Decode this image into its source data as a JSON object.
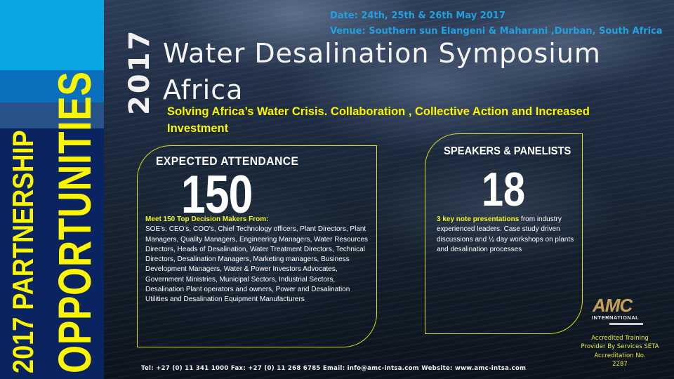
{
  "banner": {
    "line1": "2017 PARTNERSHIP",
    "line2": "OPPORTUNITIES",
    "colors": {
      "text": "#fbf600",
      "band_light": "#0aa6e6",
      "band_mid": "#0a6fbd",
      "band_gray": "#27528a",
      "band_dark": "#0a2461"
    }
  },
  "event": {
    "date": "Date: 24th, 25th & 26th May 2017",
    "venue": "Venue: Southern sun Elangeni & Maharani ,Durban, South Africa"
  },
  "header": {
    "year": "2017",
    "title_line1": "Water Desalination Symposium",
    "title_line2": "Africa",
    "subtitle": "Solving Africa’s Water Crisis. Collaboration , Collective Action and Increased Investment"
  },
  "attendance": {
    "heading": "EXPECTED ATTENDANCE",
    "number": "150",
    "lead": "Meet 150 Top Decision Makers From:",
    "body": "SOE’s, CEO’s, COO’s, Chief Technology officers, Plant Directors, Plant Managers, Quality Managers, Engineering Managers, Water Resources Directors, Heads of Desalination, Water Treatment Directors, Technical Directors, Desalination Managers, Marketing managers, Business Development Managers, Water & Power Investors Advocates, Government Ministries, Municipal Sectors, Industrial Sectors, Desalination Plant operators and owners, Power and Desalination Utilities and Desalination Equipment Manufacturers"
  },
  "speakers": {
    "heading": "SPEAKERS & PANELISTS",
    "number": "18",
    "lead": "3 key note presentations",
    "body": " from industry experienced leaders. Case study driven discussions and ½ day workshops on plants and desalination processes"
  },
  "logo": {
    "name": "AMC",
    "sub": "INTERNATIONAL"
  },
  "accreditation": {
    "line1": "Accredited Training",
    "line2": "Provider By Services SETA",
    "line3": "Accreditation No.",
    "line4": "2287"
  },
  "footer": {
    "contact": "Tel: +27 (0) 11 341 1000  Fax: +27 (0) 11 268 6785 Email: info@amc-intsa.com Website: www.amc-intsa.com"
  },
  "colors": {
    "accent_yellow": "#fbf600",
    "box_border": "#d9de1a",
    "info_blue": "#23a0e0"
  }
}
